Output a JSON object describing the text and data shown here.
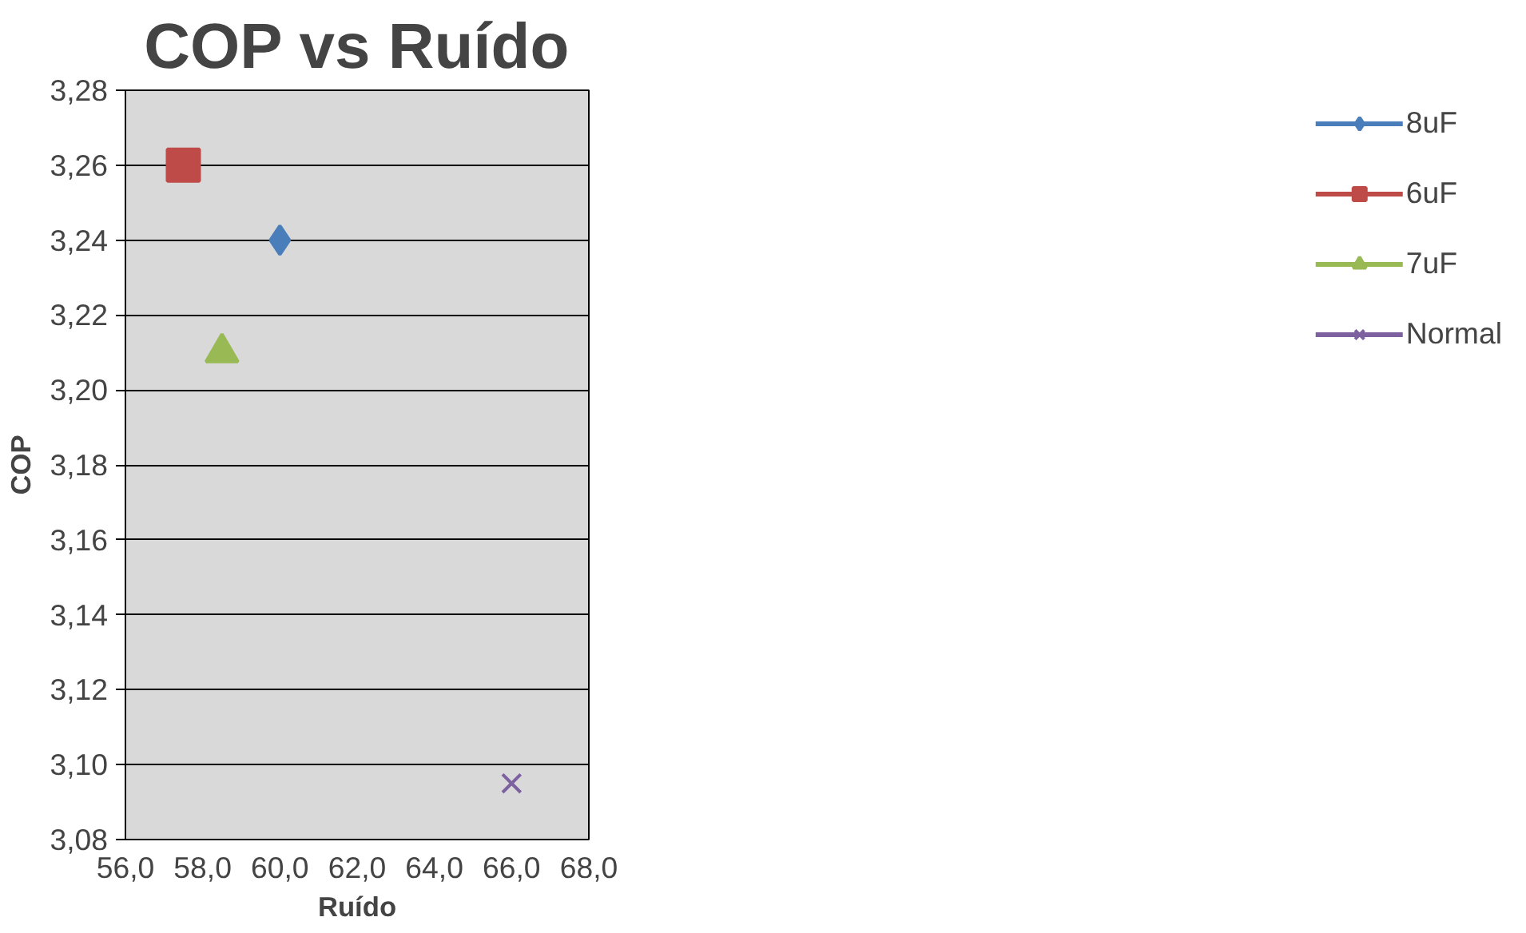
{
  "chart_data": {
    "type": "scatter",
    "title": "COP vs Ruído",
    "xlabel": "Ruído",
    "ylabel": "COP",
    "xlim": [
      56,
      68
    ],
    "ylim": [
      3.08,
      3.28
    ],
    "xticks": [
      {
        "value": 56,
        "label": "56,0"
      },
      {
        "value": 58,
        "label": "58,0"
      },
      {
        "value": 60,
        "label": "60,0"
      },
      {
        "value": 62,
        "label": "62,0"
      },
      {
        "value": 64,
        "label": "64,0"
      },
      {
        "value": 66,
        "label": "66,0"
      },
      {
        "value": 68,
        "label": "68,0"
      }
    ],
    "yticks": [
      {
        "value": 3.08,
        "label": "3,08"
      },
      {
        "value": 3.1,
        "label": "3,10"
      },
      {
        "value": 3.12,
        "label": "3,12"
      },
      {
        "value": 3.14,
        "label": "3,14"
      },
      {
        "value": 3.16,
        "label": "3,16"
      },
      {
        "value": 3.18,
        "label": "3,18"
      },
      {
        "value": 3.2,
        "label": "3,20"
      },
      {
        "value": 3.22,
        "label": "3,22"
      },
      {
        "value": 3.24,
        "label": "3,24"
      },
      {
        "value": 3.26,
        "label": "3,26"
      },
      {
        "value": 3.28,
        "label": "3,28"
      }
    ],
    "grid": "y",
    "legend": "right",
    "series": [
      {
        "name": "8uF",
        "color": "#4a7ebb",
        "marker": "diamond",
        "x": [
          60.0
        ],
        "values": [
          3.24
        ]
      },
      {
        "name": "6uF",
        "color": "#be4b48",
        "marker": "square",
        "x": [
          57.5
        ],
        "values": [
          3.26
        ]
      },
      {
        "name": "7uF",
        "color": "#98b954",
        "marker": "triangle",
        "x": [
          58.5
        ],
        "values": [
          3.21
        ]
      },
      {
        "name": "Normal",
        "color": "#7d60a0",
        "marker": "cross",
        "x": [
          66.0
        ],
        "values": [
          3.095
        ]
      }
    ]
  }
}
